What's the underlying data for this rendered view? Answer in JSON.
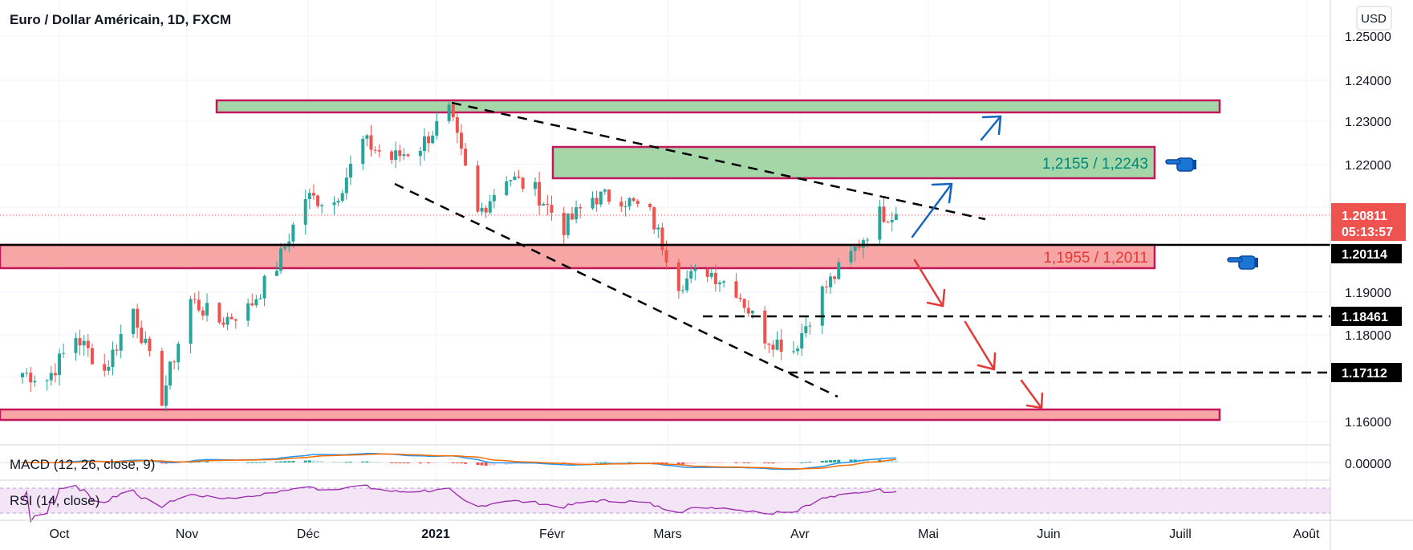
{
  "header": {
    "title": "Euro / Dollar Américain, 1D, FXCM"
  },
  "currency": "USD",
  "price_axis": {
    "ticks": [
      "1.25000",
      "1.24000",
      "1.23000",
      "1.22000",
      "1.19000",
      "1.18000",
      "1.16000"
    ]
  },
  "macd": {
    "label": "MACD (12, 26, close, 9)",
    "zero_label": "0.00000"
  },
  "rsi": {
    "label": "RSI (14, close)"
  },
  "time_axis": {
    "labels": [
      "Oct",
      "Nov",
      "Déc",
      "2021",
      "Févr",
      "Mars",
      "Avr",
      "Mai",
      "Juin",
      "Juill",
      "Août"
    ]
  },
  "zones": {
    "upper": "1,2155 / 1,2243",
    "lower": "1,1955 / 1,2011"
  },
  "price_labels": {
    "current": "1.20811",
    "countdown": "05:13:57",
    "level1": "1.20114",
    "level2": "1.18461",
    "level3": "1.17112"
  },
  "colors": {
    "up": "#26a69a",
    "down": "#ef5350",
    "zone_green": "#a5d6a7",
    "zone_red": "#f8a5a5",
    "zone_border": "#c2185b",
    "arrow_blue": "#1565c0",
    "arrow_red": "#e53935",
    "macd_line": "#2196f3",
    "signal_line": "#ff6d00",
    "rsi_line": "#9c27b0",
    "rsi_band": "#f3e5f5"
  },
  "chart_data": {
    "type": "candlestick",
    "title": "Euro / Dollar Américain, 1D, FXCM",
    "ylim": [
      1.155,
      1.253
    ],
    "x_range": [
      "2020-09-22",
      "2021-08-15"
    ],
    "close_series": [
      [
        "2020-09-22",
        1.171
      ],
      [
        "2020-09-28",
        1.1695
      ],
      [
        "2020-10-05",
        1.1795
      ],
      [
        "2020-10-12",
        1.1715
      ],
      [
        "2020-10-19",
        1.186
      ],
      [
        "2020-10-26",
        1.165
      ],
      [
        "2020-11-02",
        1.188
      ],
      [
        "2020-11-09",
        1.183
      ],
      [
        "2020-11-16",
        1.186
      ],
      [
        "2020-11-23",
        1.196
      ],
      [
        "2020-11-30",
        1.212
      ],
      [
        "2020-12-07",
        1.211
      ],
      [
        "2020-12-14",
        1.225
      ],
      [
        "2020-12-21",
        1.221
      ],
      [
        "2020-12-28",
        1.224
      ],
      [
        "2021-01-04",
        1.232
      ],
      [
        "2021-01-11",
        1.208
      ],
      [
        "2021-01-18",
        1.217
      ],
      [
        "2021-01-25",
        1.2135
      ],
      [
        "2021-02-01",
        1.205
      ],
      [
        "2021-02-08",
        1.212
      ],
      [
        "2021-02-15",
        1.212
      ],
      [
        "2021-02-22",
        1.208
      ],
      [
        "2021-03-01",
        1.192
      ],
      [
        "2021-03-08",
        1.195
      ],
      [
        "2021-03-15",
        1.1905
      ],
      [
        "2021-03-22",
        1.1795
      ],
      [
        "2021-03-29",
        1.1765
      ],
      [
        "2021-04-05",
        1.19
      ],
      [
        "2021-04-12",
        1.1985
      ],
      [
        "2021-04-19",
        1.2081
      ]
    ],
    "levels": [
      1.20114,
      1.18461,
      1.17112
    ],
    "zones": [
      [
        1.2155,
        1.2243
      ],
      [
        1.1955,
        1.2011
      ],
      [
        1.232,
        1.235
      ],
      [
        1.161,
        1.164
      ]
    ],
    "macd": {
      "label": "MACD (12, 26, close, 9)"
    },
    "rsi": {
      "label": "RSI (14, close)"
    }
  }
}
